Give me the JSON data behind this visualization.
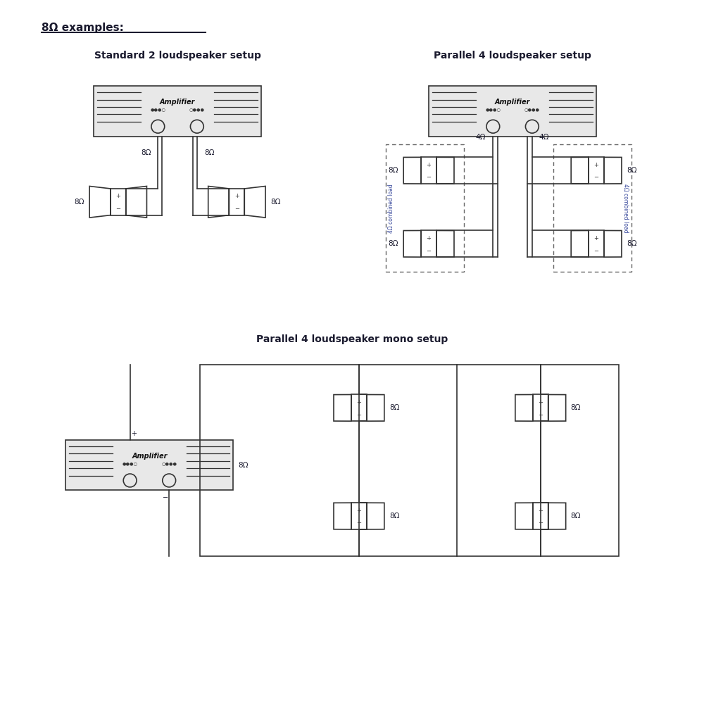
{
  "title_main": "8Ω examples:",
  "title1": "Standard 2 loudspeaker setup",
  "title2": "Parallel 4 loudspeaker setup",
  "title3": "Parallel 4 loudspeaker mono setup",
  "bg_color": "#ffffff",
  "line_color": "#333333",
  "text_color": "#1a1a2e",
  "amp_fill": "#e8e8e8",
  "speaker_fill": "#ffffff",
  "dashed_color": "#666666"
}
